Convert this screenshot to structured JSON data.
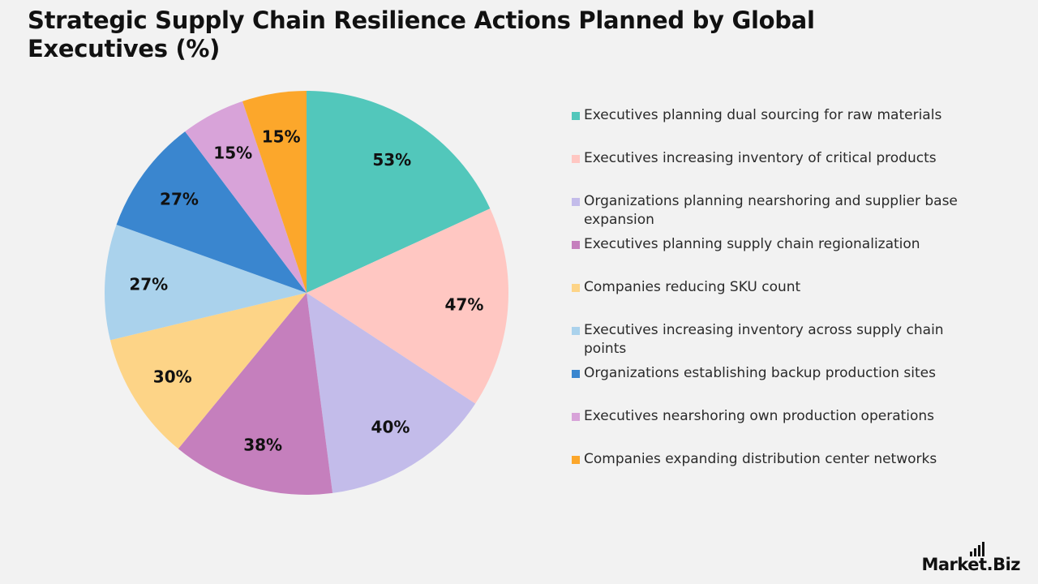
{
  "chart_data": {
    "type": "pie",
    "title": "Strategic Supply Chain Resilience Actions Planned by Global Executives (%)",
    "legend_position": "right",
    "slices": [
      {
        "label": "Executives planning dual sourcing for raw materials",
        "value": 53,
        "display": "53%",
        "color": "#52c7bb"
      },
      {
        "label": "Executives increasing inventory of critical products",
        "value": 47,
        "display": "47%",
        "color": "#ffc7c2"
      },
      {
        "label": "Organizations planning nearshoring and supplier base expansion",
        "value": 40,
        "display": "40%",
        "color": "#c3bcea"
      },
      {
        "label": "Executives planning supply chain regionalization",
        "value": 38,
        "display": "38%",
        "color": "#c57fbd"
      },
      {
        "label": "Companies reducing SKU count",
        "value": 30,
        "display": "30%",
        "color": "#fdd487"
      },
      {
        "label": "Executives increasing inventory across supply chain points",
        "value": 27,
        "display": "27%",
        "color": "#aad2ec"
      },
      {
        "label": "Organizations establishing backup production sites",
        "value": 27,
        "display": "27%",
        "color": "#3a86cf"
      },
      {
        "label": "Executives nearshoring own production operations",
        "value": 15,
        "display": "15%",
        "color": "#d8a3d9"
      },
      {
        "label": "Companies expanding distribution center networks",
        "value": 15,
        "display": "15%",
        "color": "#fca72b"
      }
    ]
  },
  "brand": {
    "logo_text": "Market.Biz"
  }
}
